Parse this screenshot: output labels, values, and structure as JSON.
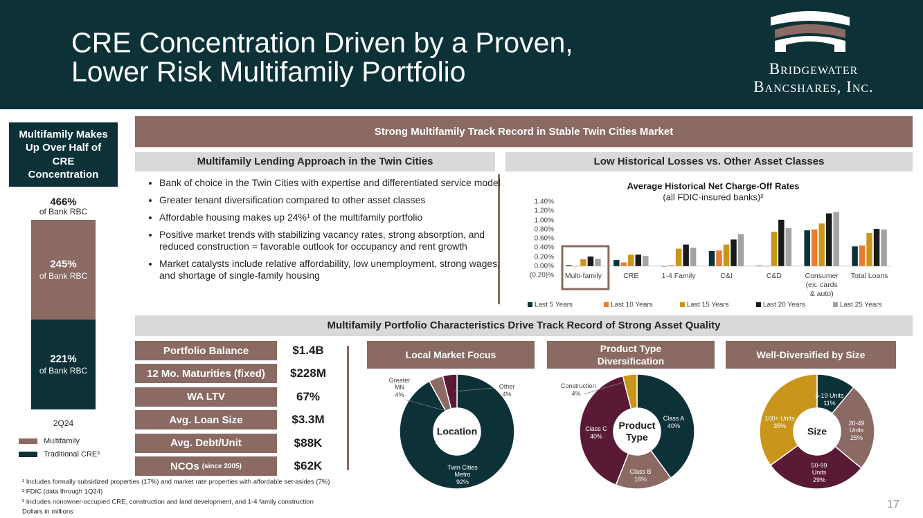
{
  "header": {
    "title": [
      "CRE Concentration Driven by a Proven,",
      "Lower Risk Multifamily Portfolio"
    ],
    "logo": [
      "Bridgewater",
      "Bancshares, Inc."
    ]
  },
  "sidebar": {
    "heading": "Multifamily Makes Up Over Half of CRE Concentration"
  },
  "banner": "Strong Multifamily Track Record in Stable Twin Cities Market",
  "lending": {
    "heading": "Multifamily Lending Approach in the Twin Cities",
    "bullets": [
      "Bank of choice in the Twin Cities with expertise and differentiated service model",
      "Greater tenant diversification compared to other asset classes",
      "Affordable housing makes up 24%¹ of the multifamily portfolio",
      "Positive market trends with stabilizing vacancy rates, strong absorption, and reduced construction = favorable outlook for occupancy and rent growth",
      "Market catalysts include relative affordability, low unemployment, strong wages, and shortage of single-family housing"
    ]
  },
  "losses": {
    "heading": "Low Historical Losses vs. Other Asset Classes"
  },
  "characteristics": {
    "heading": "Multifamily Portfolio Characteristics Drive Track Record of Strong Asset Quality",
    "stats": [
      {
        "label": "Portfolio Balance",
        "value": "$1.4B"
      },
      {
        "label": "12 Mo. Maturities (fixed)",
        "value": "$228M"
      },
      {
        "label": "WA LTV",
        "value": "67%"
      },
      {
        "label": "Avg. Loan Size",
        "value": "$3.3M"
      },
      {
        "label": "Avg. Debt/Unit",
        "value": "$88K"
      },
      {
        "label": "NCOs",
        "note": "(since 2005)",
        "value": "$62K"
      }
    ]
  },
  "footnotes": [
    "¹ Includes formally subsidized properties (17%) and market rate properties with affordable set-asides (7%)",
    "² FDIC (data through 1Q24)",
    "³ Includes nonowner-occupied CRE, construction and land development, and 1-4 family construction",
    "Dollars in millions"
  ],
  "page_number": "17",
  "chart_data": [
    {
      "type": "stacked_bar",
      "total_label": "466%",
      "value_note": "of Bank RBC",
      "categories": [
        "2Q24"
      ],
      "legend": "bottom",
      "series": [
        {
          "name": "Multifamily",
          "color": "#8a6a63",
          "values": [
            245
          ],
          "value_labels": [
            "245%"
          ]
        },
        {
          "name": "Traditional CRE³",
          "color": "#0c3238",
          "values": [
            221
          ],
          "value_labels": [
            "221%"
          ]
        }
      ]
    },
    {
      "type": "bar",
      "title": "Average Historical Net Charge-Off Rates",
      "subtitle": "(all FDIC-insured banks)²",
      "legend": "bottom",
      "grid": false,
      "categories": [
        "Multi-family",
        "CRE",
        "1-4 Family",
        "C&I",
        "C&D",
        "Consumer (ex. cards & auto)",
        "Total Loans"
      ],
      "ylim": [
        -0.2,
        1.4
      ],
      "yticks": [
        {
          "value": -0.2,
          "label": "(0.20)%"
        },
        {
          "value": 0,
          "label": "0.00%"
        },
        {
          "value": 0.2,
          "label": "0.20%"
        },
        {
          "value": 0.4,
          "label": "0.40%"
        },
        {
          "value": 0.6,
          "label": "0.60%"
        },
        {
          "value": 0.8,
          "label": "0.80%"
        },
        {
          "value": 1.0,
          "label": "1.00%"
        },
        {
          "value": 1.2,
          "label": "1.20%"
        },
        {
          "value": 1.4,
          "label": "1.40%"
        }
      ],
      "series": [
        {
          "name": "Last 5 Years",
          "color": "#0c3238",
          "values": [
            0.02,
            0.13,
            0.0,
            0.33,
            0.01,
            0.78,
            0.43
          ]
        },
        {
          "name": "Last 10 Years",
          "color": "#e87d31",
          "values": [
            0.0,
            0.08,
            0.02,
            0.34,
            0.0,
            0.8,
            0.45
          ]
        },
        {
          "name": "Last 15 Years",
          "color": "#c9961b",
          "values": [
            0.15,
            0.25,
            0.38,
            0.47,
            0.75,
            0.93,
            0.72
          ]
        },
        {
          "name": "Last 20 Years",
          "color": "#1a1a1a",
          "values": [
            0.21,
            0.25,
            0.47,
            0.58,
            1.01,
            1.15,
            0.81
          ]
        },
        {
          "name": "Last 25 Years",
          "color": "#a3a3a3",
          "values": [
            0.16,
            0.22,
            0.4,
            0.7,
            0.83,
            1.18,
            0.8
          ]
        }
      ]
    },
    {
      "type": "donut",
      "title": "Local Market Focus",
      "center_label": "Location",
      "categories": [
        "Twin Cities Metro",
        "Greater MN",
        "Other"
      ],
      "values": [
        92,
        4,
        4
      ],
      "value_labels": [
        "92%",
        "4%",
        "4%"
      ],
      "colors": [
        "#0c3238",
        "#8a6a63",
        "#5a1a35"
      ]
    },
    {
      "type": "donut",
      "title": "Product Type Diversification",
      "center_label": "Product Type",
      "categories": [
        "Class A",
        "Class B",
        "Class C",
        "Construction"
      ],
      "values": [
        40,
        16,
        40,
        4
      ],
      "value_labels": [
        "40%",
        "16%",
        "40%",
        "4%"
      ],
      "colors": [
        "#0c3238",
        "#8a6a63",
        "#5a1a35",
        "#c9961b"
      ]
    },
    {
      "type": "donut",
      "title": "Well-Diversified by Size",
      "center_label": "Size",
      "categories": [
        "5-19 Units",
        "20-49 Units",
        "50-99 Units",
        "100+ Units"
      ],
      "values": [
        11,
        25,
        29,
        35
      ],
      "value_labels": [
        "11%",
        "25%",
        "29%",
        "35%"
      ],
      "colors": [
        "#0c3238",
        "#8a6a63",
        "#5a1a35",
        "#c9961b"
      ]
    }
  ]
}
